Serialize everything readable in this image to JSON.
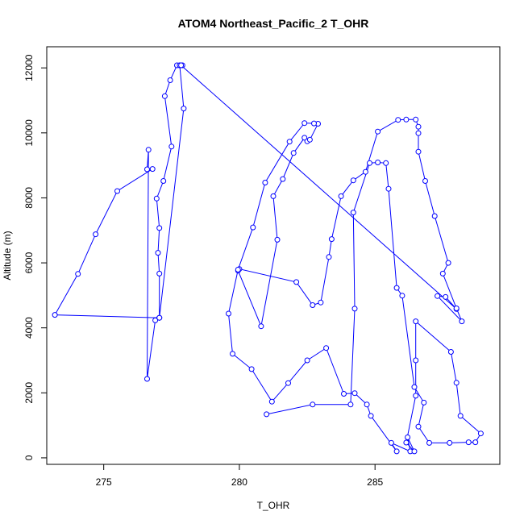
{
  "chart_data": {
    "type": "line",
    "title": "ATOM4 Northeast_Pacific_2 T_OHR",
    "xlabel": "T_OHR",
    "ylabel": "Altitude (m)",
    "xlim": [
      272.9,
      289.6
    ],
    "ylim": [
      -200,
      12650
    ],
    "xticks": [
      275,
      280,
      285
    ],
    "yticks": [
      0,
      2000,
      4000,
      6000,
      8000,
      10000,
      12000
    ],
    "grid": false,
    "legend": "none",
    "colors": {
      "series": "#0000ff",
      "axis": "#000000",
      "background": "#ffffff"
    },
    "markers": "open-circle",
    "series": [
      {
        "points": [
          [
            277.8,
            12080
          ],
          [
            277.9,
            12080
          ],
          [
            277.7,
            12080
          ],
          [
            277.45,
            11620
          ],
          [
            277.25,
            11130
          ],
          [
            277.5,
            9580
          ],
          [
            277.2,
            8520
          ],
          [
            276.95,
            7980
          ],
          [
            277.05,
            7070
          ],
          [
            277.0,
            6310
          ],
          [
            277.05,
            5670
          ],
          [
            277.05,
            4310
          ],
          [
            276.9,
            4230
          ],
          [
            276.6,
            2430
          ],
          [
            276.65,
            9480
          ],
          [
            276.6,
            8880
          ],
          [
            276.8,
            8890
          ],
          [
            275.5,
            8210
          ],
          [
            274.7,
            6880
          ],
          [
            274.05,
            5660
          ],
          [
            273.2,
            4400
          ],
          [
            277.05,
            4310
          ],
          [
            277.05,
            4310
          ],
          [
            277.95,
            10750
          ],
          [
            277.8,
            12080
          ],
          [
            277.85,
            12080
          ],
          [
            288.0,
            4580
          ],
          [
            287.6,
            4950
          ],
          [
            287.3,
            4980
          ],
          [
            288.2,
            4200
          ],
          [
            288.0,
            4600
          ],
          [
            287.5,
            5670
          ],
          [
            287.7,
            6000
          ],
          [
            287.2,
            7440
          ],
          [
            286.85,
            8520
          ],
          [
            286.6,
            9420
          ],
          [
            286.6,
            9990
          ],
          [
            286.6,
            10190
          ],
          [
            286.5,
            10410
          ],
          [
            286.15,
            10410
          ],
          [
            285.85,
            10400
          ],
          [
            285.1,
            10040
          ],
          [
            284.65,
            8800
          ],
          [
            284.2,
            8540
          ],
          [
            283.75,
            8050
          ],
          [
            283.4,
            6730
          ],
          [
            283.3,
            6180
          ],
          [
            283.0,
            4780
          ],
          [
            282.7,
            4700
          ],
          [
            282.1,
            5410
          ],
          [
            280.0,
            5810
          ],
          [
            279.95,
            5760
          ],
          [
            280.8,
            4050
          ],
          [
            281.4,
            6710
          ],
          [
            281.25,
            8050
          ],
          [
            281.6,
            8580
          ],
          [
            282.0,
            9380
          ],
          [
            282.4,
            9850
          ],
          [
            282.5,
            9740
          ],
          [
            282.6,
            9790
          ],
          [
            282.9,
            10280
          ],
          [
            282.75,
            10290
          ],
          [
            282.4,
            10300
          ],
          [
            281.85,
            9730
          ],
          [
            280.95,
            8470
          ],
          [
            280.5,
            7090
          ],
          [
            279.95,
            5790
          ],
          [
            279.6,
            4440
          ],
          [
            279.75,
            3200
          ],
          [
            280.45,
            2730
          ],
          [
            281.2,
            1730
          ],
          [
            281.8,
            2300
          ],
          [
            282.5,
            3000
          ],
          [
            283.2,
            3380
          ],
          [
            283.85,
            1970
          ],
          [
            284.25,
            1990
          ],
          [
            284.7,
            1640
          ],
          [
            284.85,
            1290
          ],
          [
            285.8,
            200
          ],
          [
            285.6,
            460
          ],
          [
            286.3,
            200
          ],
          [
            286.2,
            630
          ],
          [
            286.45,
            200
          ],
          [
            286.15,
            470
          ],
          [
            286.5,
            1910
          ],
          [
            286.5,
            3000
          ],
          [
            286.5,
            4200
          ],
          [
            287.8,
            3260
          ],
          [
            288.0,
            2310
          ],
          [
            288.15,
            1290
          ],
          [
            288.9,
            750
          ],
          [
            288.7,
            480
          ],
          [
            288.45,
            480
          ],
          [
            287.75,
            460
          ],
          [
            287.0,
            460
          ],
          [
            286.6,
            960
          ],
          [
            286.8,
            1700
          ],
          [
            286.45,
            2180
          ],
          [
            286.0,
            4990
          ],
          [
            285.8,
            5230
          ],
          [
            285.5,
            8280
          ],
          [
            285.4,
            9070
          ],
          [
            285.1,
            9090
          ],
          [
            284.8,
            9070
          ],
          [
            284.2,
            7550
          ],
          [
            284.25,
            4590
          ],
          [
            284.1,
            1640
          ],
          [
            282.7,
            1640
          ],
          [
            281.0,
            1340
          ]
        ]
      }
    ]
  }
}
